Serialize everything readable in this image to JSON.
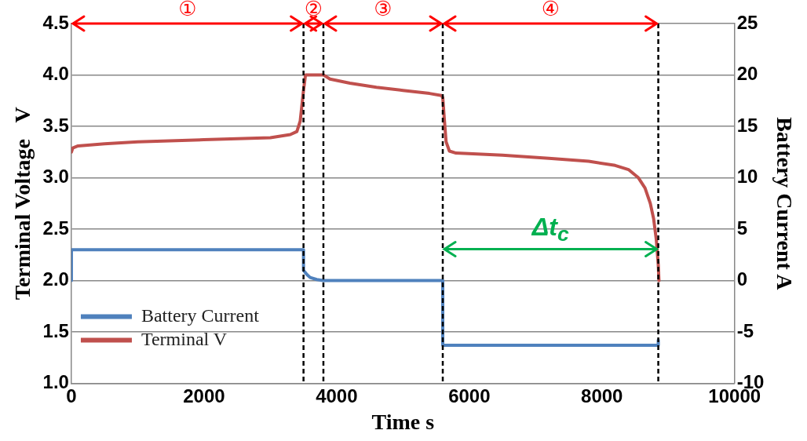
{
  "chart_data": {
    "type": "line",
    "xlabel": "Time s",
    "ylabel": "Terminal Voltage   V",
    "y2label": "Battery Current A",
    "xlim": [
      0,
      10000
    ],
    "xticks": [
      0,
      2000,
      4000,
      6000,
      8000,
      10000
    ],
    "ylim": [
      1.0,
      4.5
    ],
    "yticks": [
      {
        "value": 1.0,
        "label": "1.0"
      },
      1.5,
      {
        "value": 2.0,
        "label": "2.0"
      },
      2.5,
      {
        "value": 3.0,
        "label": "3.0"
      },
      3.5,
      {
        "value": 4.0,
        "label": "4.0"
      },
      4.5
    ],
    "y2lim": [
      -10,
      25
    ],
    "y2ticks": [
      -10,
      -5,
      0,
      5,
      10,
      15,
      20,
      25
    ],
    "grid": "y",
    "legend": "bottom left",
    "marker": "none",
    "line_style": "solid",
    "series": [
      {
        "name": "Battery Current",
        "color": "#4f81bd",
        "axis": "y2",
        "x": [
          0,
          0,
          3500,
          3500,
          3550,
          3600,
          3700,
          3800,
          5600,
          5600,
          8850,
          8850
        ],
        "values": [
          0,
          3,
          3,
          1.0,
          0.6,
          0.3,
          0.1,
          0,
          0,
          -6.3,
          -6.3,
          -5.8
        ]
      },
      {
        "name": "Terminal V",
        "color": "#c0504d",
        "x": [
          0,
          20,
          100,
          500,
          1000,
          2000,
          3000,
          3300,
          3400,
          3450,
          3500,
          3530,
          3560,
          3800,
          3850,
          3900,
          4200,
          4600,
          5000,
          5400,
          5580,
          5600,
          5620,
          5650,
          5700,
          5800,
          6500,
          7200,
          7800,
          8200,
          8400,
          8550,
          8650,
          8730,
          8780,
          8820,
          8850,
          8860
        ],
        "values": [
          3.25,
          3.29,
          3.31,
          3.33,
          3.35,
          3.37,
          3.39,
          3.42,
          3.45,
          3.55,
          3.85,
          4.0,
          4.0,
          4.0,
          3.98,
          3.96,
          3.92,
          3.88,
          3.85,
          3.82,
          3.8,
          3.78,
          3.6,
          3.35,
          3.26,
          3.24,
          3.22,
          3.19,
          3.16,
          3.12,
          3.08,
          3.0,
          2.9,
          2.75,
          2.6,
          2.4,
          2.15,
          2.0
        ]
      }
    ],
    "ref_lines": [
      {
        "axis": "x",
        "value": 3500,
        "color": "#000000",
        "line_style": "dashed"
      },
      {
        "axis": "x",
        "value": 3800,
        "color": "#000000",
        "line_style": "dashed"
      },
      {
        "axis": "x",
        "value": 5600,
        "color": "#000000",
        "line_style": "dashed"
      },
      {
        "axis": "x",
        "value": 8850,
        "color": "#000000",
        "line_style": "dashed"
      }
    ],
    "annotations": [
      "①",
      "②",
      "③",
      "④",
      "Δt$_{c}$"
    ]
  }
}
